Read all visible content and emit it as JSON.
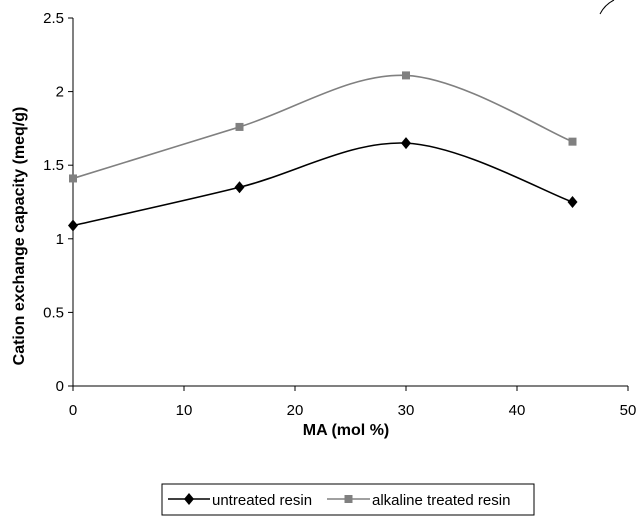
{
  "chart_data": {
    "type": "line",
    "title": "",
    "xlabel": "MA (mol %)",
    "ylabel": "Cation exchange capacity (meq/g)",
    "xlim": [
      0,
      50
    ],
    "ylim": [
      0,
      2.5
    ],
    "x_ticks": [
      "0",
      "10",
      "20",
      "30",
      "40",
      "50"
    ],
    "y_ticks": [
      "0",
      "0.5",
      "1",
      "1.5",
      "2",
      "2.5"
    ],
    "x": [
      0,
      15,
      30,
      45
    ],
    "series": [
      {
        "name": "untreated resin",
        "values": [
          1.09,
          1.35,
          1.65,
          1.25
        ],
        "color": "#000000",
        "marker": "diamond"
      },
      {
        "name": "alkaline treated resin",
        "values": [
          1.41,
          1.76,
          2.11,
          1.66
        ],
        "color": "#808080",
        "marker": "square"
      }
    ],
    "smooth": true,
    "grid": false,
    "legend_position": "bottom"
  }
}
